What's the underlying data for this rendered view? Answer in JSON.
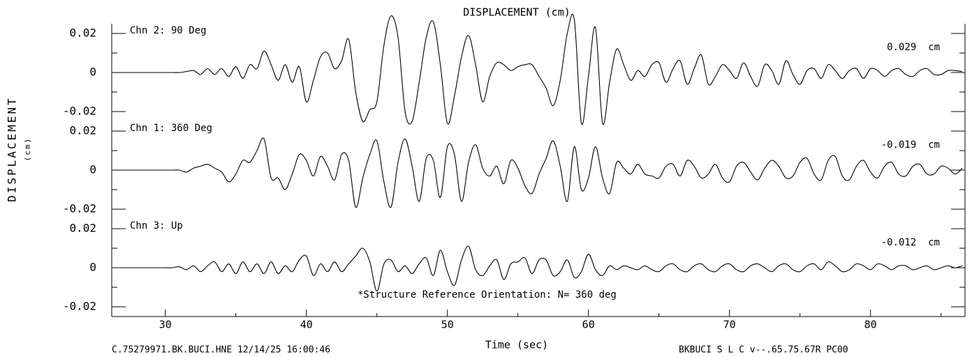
{
  "chart_data": {
    "type": "line",
    "layout": "stacked",
    "title": "DISPLACEMENT (cm)",
    "y_label": "DISPLACEMENT",
    "y_unit": "(cm)",
    "x_label": "Time (sec)",
    "footer_left": "C.75279971.BK.BUCI.HNE 12/14/25 16:00:46",
    "footer_right": "BKBUCI  S L C   v--.65.75.67R PC00",
    "annotation": "*Structure Reference Orientation: N= 360 deg",
    "xlim": [
      26.2,
      86.7
    ],
    "xticks": [
      30,
      40,
      50,
      60,
      70,
      80
    ],
    "xticks_minor": [
      35,
      45,
      55,
      65,
      75,
      85
    ],
    "ylim": [
      -0.025,
      0.025
    ],
    "yticks": [
      0.02,
      0,
      -0.02
    ],
    "yticks_minor": [
      0.01,
      -0.01
    ],
    "color": "#000000",
    "x": [
      26.5,
      27,
      27.5,
      28,
      28.5,
      29,
      29.5,
      30,
      30.5,
      31,
      31.5,
      32,
      32.5,
      33,
      33.5,
      34,
      34.5,
      35,
      35.5,
      36,
      36.5,
      37,
      37.5,
      38,
      38.5,
      39,
      39.5,
      40,
      40.5,
      41,
      41.5,
      42,
      42.5,
      43,
      43.5,
      44,
      44.5,
      45,
      45.5,
      46,
      46.5,
      47,
      47.5,
      48,
      48.5,
      49,
      49.5,
      50,
      50.5,
      51,
      51.5,
      52,
      52.5,
      53,
      53.5,
      54,
      54.5,
      55,
      55.5,
      56,
      56.5,
      57,
      57.5,
      58,
      58.5,
      59,
      59.5,
      60,
      60.5,
      61,
      61.5,
      62,
      62.5,
      63,
      63.5,
      64,
      64.5,
      65,
      65.5,
      66,
      66.5,
      67,
      67.5,
      68,
      68.5,
      69,
      69.5,
      70,
      70.5,
      71,
      71.5,
      72,
      72.5,
      73,
      73.5,
      74,
      74.5,
      75,
      75.5,
      76,
      76.5,
      77,
      77.5,
      78,
      78.5,
      79,
      79.5,
      80,
      80.5,
      81,
      81.5,
      82,
      82.5,
      83,
      83.5,
      84,
      84.5,
      85,
      85.5,
      86,
      86.5
    ],
    "series": [
      {
        "name": "Chn 2: 90 Deg",
        "peak_label": "0.029  cm",
        "values": [
          0,
          0,
          0,
          0,
          0,
          0,
          0,
          0,
          0,
          0,
          0.0005,
          0.001,
          -0.001,
          0.002,
          -0.001,
          0.002,
          -0.002,
          0.003,
          -0.003,
          0.004,
          0.002,
          0.011,
          0.004,
          -0.004,
          0.004,
          -0.005,
          0.003,
          -0.015,
          -0.004,
          0.008,
          0.01,
          0.002,
          0.006,
          0.017,
          -0.01,
          -0.025,
          -0.019,
          -0.015,
          0.014,
          0.029,
          0.018,
          -0.02,
          -0.025,
          -0.005,
          0.018,
          0.026,
          0.004,
          -0.026,
          -0.012,
          0.008,
          0.019,
          0.004,
          -0.015,
          -0.002,
          0.005,
          0.004,
          0.001,
          0.003,
          0.004,
          0.004,
          -0.002,
          -0.008,
          -0.017,
          -0.004,
          0.02,
          0.027,
          -0.026,
          -0.002,
          0.023,
          -0.026,
          -0.005,
          0.012,
          0.004,
          -0.004,
          0.001,
          -0.002,
          0.004,
          0.005,
          -0.005,
          0.002,
          0.006,
          -0.006,
          0.002,
          0.009,
          -0.006,
          -0.002,
          0.004,
          0.001,
          -0.003,
          0.005,
          -0.002,
          -0.007,
          0.004,
          0.001,
          -0.006,
          0.006,
          -0.001,
          -0.006,
          0.001,
          0.002,
          -0.003,
          0.004,
          0.001,
          -0.003,
          0.001,
          0.002,
          -0.003,
          0.002,
          0.001,
          -0.002,
          0.001,
          0.002,
          -0.001,
          -0.002,
          0.001,
          0.002,
          -0.001,
          -0.001,
          0.001,
          0.001,
          0.0005
        ]
      },
      {
        "name": "Chn 1: 360 Deg",
        "peak_label": "-0.019  cm",
        "values": [
          0,
          0,
          0,
          0,
          0,
          0,
          0,
          0,
          0,
          0,
          -0.001,
          0.001,
          0.002,
          0.003,
          0.001,
          -0.001,
          -0.006,
          -0.002,
          0.005,
          0.004,
          0.01,
          0.016,
          -0.004,
          -0.004,
          -0.01,
          -0.002,
          0.008,
          0.005,
          -0.003,
          0.007,
          0.002,
          -0.005,
          0.008,
          0.005,
          -0.019,
          -0.004,
          0.008,
          0.015,
          -0.006,
          -0.019,
          0.004,
          0.016,
          0.002,
          -0.016,
          0.006,
          0.005,
          -0.014,
          0.012,
          0.008,
          -0.016,
          0.004,
          0.013,
          0.001,
          -0.003,
          0.002,
          -0.007,
          0.005,
          0.001,
          -0.008,
          -0.012,
          -0.002,
          0.006,
          0.015,
          0.002,
          -0.016,
          0.012,
          -0.01,
          -0.004,
          0.012,
          -0.004,
          -0.012,
          0.004,
          0.001,
          -0.002,
          0.003,
          -0.002,
          -0.003,
          -0.004,
          0.002,
          0.003,
          -0.003,
          0.005,
          0.002,
          -0.004,
          -0.002,
          0.003,
          -0.004,
          -0.006,
          0.002,
          0.004,
          -0.001,
          -0.005,
          0.001,
          0.005,
          0.002,
          -0.004,
          -0.003,
          0.004,
          0.006,
          -0.002,
          -0.005,
          0.005,
          0.007,
          -0.003,
          -0.005,
          0.002,
          0.005,
          -0.001,
          -0.004,
          0.002,
          0.004,
          -0.002,
          -0.003,
          0.002,
          0.003,
          -0.002,
          -0.002,
          0.002,
          0.001,
          -0.002,
          0.001
        ]
      },
      {
        "name": "Chn 3: Up",
        "peak_label": "-0.012  cm",
        "values": [
          0,
          0,
          0,
          0,
          0,
          0,
          0,
          0,
          0,
          0.0005,
          -0.001,
          0.001,
          -0.002,
          0.001,
          0.003,
          -0.002,
          0.002,
          -0.003,
          0.003,
          -0.002,
          0.002,
          -0.003,
          0.003,
          -0.003,
          0.001,
          -0.002,
          0.004,
          0.006,
          -0.004,
          0.002,
          -0.002,
          0.003,
          -0.002,
          0.002,
          0.006,
          0.01,
          0.003,
          -0.012,
          0.002,
          0.004,
          -0.002,
          0.001,
          -0.003,
          0.002,
          0.005,
          -0.004,
          0.009,
          -0.002,
          -0.009,
          0.004,
          0.011,
          -0.001,
          -0.004,
          0.001,
          0.004,
          -0.006,
          0.002,
          0.003,
          0.005,
          -0.003,
          0.004,
          0.004,
          -0.004,
          -0.002,
          0.004,
          -0.005,
          -0.002,
          0.007,
          -0.001,
          -0.004,
          0.001,
          -0.001,
          0.001,
          0,
          -0.001,
          0.001,
          -0.001,
          -0.002,
          0.001,
          0.002,
          -0.001,
          -0.002,
          0.001,
          0.002,
          -0.001,
          -0.002,
          0.001,
          0.002,
          -0.001,
          -0.002,
          0.001,
          0.002,
          0,
          -0.002,
          0.001,
          0.002,
          -0.001,
          -0.002,
          0.001,
          0.002,
          -0.001,
          0.003,
          0.001,
          -0.002,
          -0.001,
          0.002,
          0.001,
          -0.001,
          0.002,
          0.001,
          -0.001,
          0.001,
          0.001,
          -0.001,
          0,
          0.001,
          -0.001,
          0,
          0.001,
          0,
          0.001
        ]
      }
    ]
  }
}
